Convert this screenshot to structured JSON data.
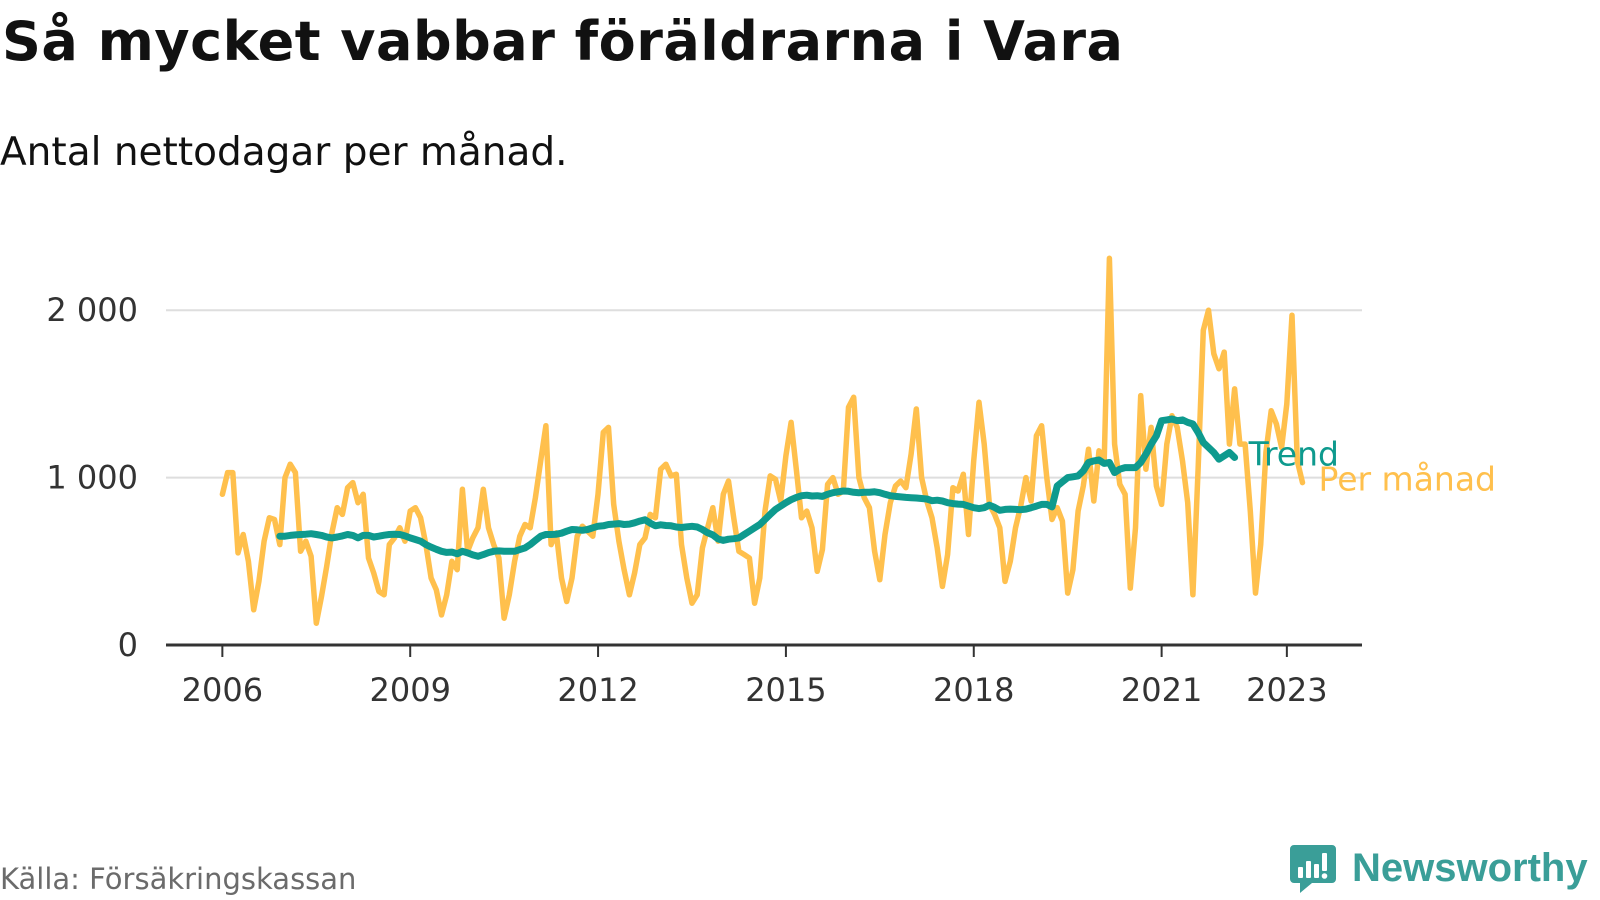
{
  "title": "Så mycket vabbar föräldrarna i Vara",
  "subtitle": "Antal nettodagar per månad.",
  "source": "Källa: Försäkringskassan",
  "brand": {
    "name": "Newsworthy",
    "icon": "newsworthy-logo-icon",
    "color": "#3a9e98"
  },
  "colors": {
    "trend": "#0e9a8e",
    "monthly": "#ffc04d",
    "grid": "#dedede",
    "axis": "#333333"
  },
  "chart_data": {
    "type": "line",
    "title": "Så mycket vabbar föräldrarna i Vara",
    "subtitle": "Antal nettodagar per månad.",
    "xlabel": "",
    "ylabel": "",
    "xlim": [
      2005.1,
      2024.2
    ],
    "ylim": [
      0,
      2300
    ],
    "yticks": [
      0,
      1000,
      2000
    ],
    "ytick_labels": [
      "0",
      "1 000",
      "2 000"
    ],
    "xticks": [
      2006,
      2009,
      2012,
      2015,
      2018,
      2021,
      2023
    ],
    "xtick_labels": [
      "2006",
      "2009",
      "2012",
      "2015",
      "2018",
      "2021",
      "2023"
    ],
    "grid": true,
    "legend": "inline labels at line ends",
    "series": [
      {
        "name": "Per månad",
        "color": "#ffc04d",
        "x_start": 2006.0,
        "x_step": 0.08333,
        "values": [
          900,
          1030,
          1030,
          550,
          660,
          500,
          210,
          380,
          620,
          760,
          750,
          600,
          1000,
          1080,
          1030,
          560,
          620,
          530,
          130,
          290,
          470,
          670,
          820,
          780,
          940,
          970,
          850,
          900,
          520,
          430,
          320,
          300,
          600,
          640,
          700,
          620,
          800,
          820,
          760,
          600,
          400,
          330,
          180,
          300,
          500,
          450,
          930,
          560,
          640,
          700,
          930,
          700,
          600,
          520,
          160,
          300,
          500,
          650,
          720,
          700,
          880,
          1100,
          1310,
          600,
          670,
          400,
          260,
          400,
          650,
          710,
          680,
          650,
          900,
          1270,
          1300,
          840,
          620,
          450,
          300,
          430,
          600,
          640,
          780,
          760,
          1050,
          1080,
          1010,
          1020,
          600,
          400,
          250,
          300,
          580,
          700,
          820,
          620,
          900,
          980,
          760,
          560,
          540,
          520,
          250,
          400,
          800,
          1010,
          990,
          860,
          1130,
          1330,
          1050,
          760,
          800,
          700,
          440,
          570,
          960,
          1000,
          900,
          920,
          1420,
          1480,
          1000,
          880,
          820,
          560,
          390,
          660,
          850,
          950,
          980,
          940,
          1140,
          1410,
          1000,
          860,
          760,
          580,
          350,
          540,
          940,
          920,
          1020,
          660,
          1100,
          1450,
          1200,
          840,
          780,
          700,
          380,
          500,
          700,
          830,
          1000,
          860,
          1250,
          1310,
          1000,
          750,
          820,
          740,
          310,
          450,
          800,
          950,
          1170,
          860,
          1160,
          1100,
          2310,
          1200,
          960,
          900,
          340,
          700,
          1490,
          1050,
          1300,
          950,
          840,
          1200,
          1370,
          1300,
          1100,
          850,
          300,
          1050,
          1880,
          2000,
          1740,
          1650,
          1750,
          1200,
          1530,
          1200,
          1200,
          800,
          310,
          600,
          1150,
          1400,
          1320,
          1180,
          1440,
          1970,
          1100,
          970
        ]
      },
      {
        "name": "Trend",
        "color": "#0e9a8e",
        "x_start": 2006.9167,
        "x_step": 0.08333,
        "values": [
          650,
          650,
          655,
          658,
          660,
          662,
          665,
          660,
          655,
          645,
          640,
          645,
          652,
          660,
          655,
          640,
          655,
          655,
          645,
          650,
          656,
          660,
          662,
          660,
          652,
          640,
          630,
          620,
          600,
          585,
          572,
          560,
          553,
          555,
          545,
          560,
          550,
          538,
          530,
          540,
          552,
          560,
          562,
          560,
          560,
          560,
          570,
          580,
          600,
          625,
          650,
          660,
          660,
          662,
          668,
          680,
          690,
          688,
          685,
          690,
          700,
          710,
          712,
          720,
          722,
          725,
          720,
          722,
          730,
          740,
          748,
          728,
          712,
          718,
          714,
          712,
          705,
          702,
          706,
          709,
          705,
          690,
          670,
          658,
          633,
          625,
          632,
          635,
          640,
          660,
          680,
          700,
          720,
          750,
          780,
          810,
          830,
          850,
          868,
          882,
          892,
          895,
          890,
          892,
          888,
          900,
          910,
          915,
          920,
          918,
          912,
          910,
          912,
          913,
          915,
          910,
          900,
          892,
          888,
          885,
          882,
          880,
          878,
          875,
          872,
          862,
          865,
          860,
          850,
          845,
          842,
          840,
          830,
          820,
          815,
          820,
          835,
          822,
          805,
          810,
          812,
          810,
          808,
          812,
          820,
          830,
          840,
          840,
          825,
          950,
          975,
          1000,
          1005,
          1010,
          1040,
          1090,
          1100,
          1105,
          1085,
          1090,
          1030,
          1050,
          1060,
          1060,
          1060,
          1090,
          1140,
          1200,
          1250,
          1340,
          1345,
          1350,
          1340,
          1345,
          1330,
          1320,
          1270,
          1210,
          1180,
          1150,
          1110,
          1130,
          1150,
          1120
        ]
      }
    ]
  }
}
